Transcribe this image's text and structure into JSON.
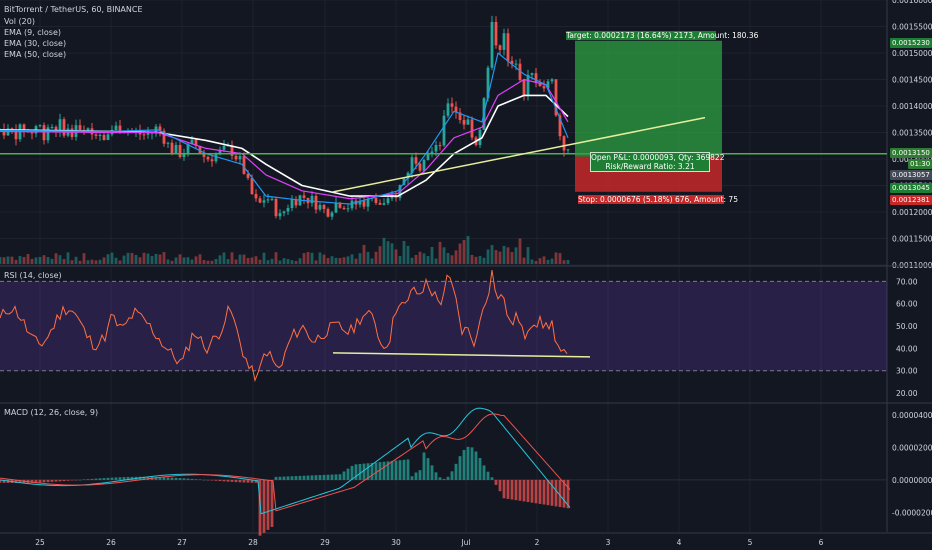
{
  "header": {
    "symbol_line": "BitTorrent / TetherUS, 60, BINANCE",
    "indicators": [
      "Vol (20)",
      "EMA (9, close)",
      "EMA (30, close)",
      "EMA (50, close)"
    ]
  },
  "rsi_label": "RSI (14, close)",
  "macd_label": "MACD (12, 26, close, 9)",
  "position": {
    "target_text": "Target: 0.0002173 (16.64%) 2173, Amount: 180.36",
    "open_text_line1": "Open P&L: 0.0000093, Qty: 369822",
    "open_text_line2": "Risk/Reward Ratio: 3.21",
    "stop_text": "Stop: 0.0000676 (5.18%) 676, Amount: 75"
  },
  "price_badges": {
    "target": "0.0015230",
    "current": "0.0013150",
    "timer": "01:30",
    "ema": "0.0013057",
    "entry": "0.0013045",
    "stop": "0.0012381"
  },
  "colors": {
    "bg": "#131722",
    "up": "#26a69a",
    "down": "#ef5350",
    "target_zone": "#1e7e34",
    "stop_zone": "#b71c1c",
    "ema9": "#2196f3",
    "ema30": "#e040fb",
    "ema50": "#ffffff",
    "trendline": "#e6ee9c",
    "horizontal": "#4caf50",
    "rsi_line": "#ff7043",
    "macd_line": "#26c6da",
    "signal_line": "#ef5350"
  },
  "chart_data": [
    {
      "type": "candlestick",
      "title": "BitTorrent / TetherUS, 60, BINANCE",
      "x_ticks": [
        "25",
        "26",
        "27",
        "28",
        "29",
        "30",
        "Jul",
        "2",
        "3",
        "4",
        "5",
        "6"
      ],
      "y_ticks": [
        "0.0016000",
        "0.0015500",
        "0.0015000",
        "0.0014500",
        "0.0014000",
        "0.0013500",
        "0.0013000",
        "0.0012500",
        "0.0012000",
        "0.0011500",
        "0.0011000"
      ],
      "ylim": [
        0.0011,
        0.0016
      ],
      "close_path": [
        [
          0,
          0.001355
        ],
        [
          12,
          0.00136
        ],
        [
          24,
          0.00135
        ],
        [
          36,
          0.001345
        ],
        [
          48,
          0.00136
        ],
        [
          60,
          0.00132
        ],
        [
          72,
          0.00131
        ],
        [
          84,
          0.00133
        ],
        [
          96,
          0.0013
        ],
        [
          108,
          0.00131
        ],
        [
          120,
          0.00132
        ],
        [
          132,
          0.00129
        ],
        [
          140,
          0.00124
        ],
        [
          148,
          0.00121
        ],
        [
          156,
          0.00123
        ],
        [
          164,
          0.00121
        ],
        [
          170,
          0.00119
        ],
        [
          180,
          0.00122
        ],
        [
          192,
          0.00123
        ],
        [
          204,
          0.00122
        ],
        [
          216,
          0.0012
        ],
        [
          228,
          0.00122
        ],
        [
          240,
          0.00121
        ],
        [
          252,
          0.00122
        ],
        [
          264,
          0.00122
        ],
        [
          276,
          0.00121
        ],
        [
          288,
          0.00124
        ],
        [
          296,
          0.00127
        ],
        [
          304,
          0.00131
        ],
        [
          310,
          0.00129
        ],
        [
          316,
          0.00132
        ],
        [
          324,
          0.00131
        ],
        [
          330,
          0.00133
        ],
        [
          338,
          0.00141
        ],
        [
          344,
          0.0014
        ],
        [
          352,
          0.00137
        ],
        [
          358,
          0.00137
        ],
        [
          366,
          0.00133
        ],
        [
          372,
          0.00138
        ],
        [
          378,
          0.00147
        ],
        [
          382,
          0.00155
        ],
        [
          388,
          0.00151
        ],
        [
          394,
          0.00153
        ],
        [
          400,
          0.00146
        ],
        [
          406,
          0.00149
        ],
        [
          414,
          0.00143
        ],
        [
          420,
          0.00146
        ],
        [
          428,
          0.00145
        ],
        [
          436,
          0.00143
        ],
        [
          442,
          0.00146
        ],
        [
          446,
          0.00138
        ],
        [
          452,
          0.00133
        ],
        [
          458,
          0.00131
        ]
      ],
      "ema9_path": [
        [
          0,
          0.001352
        ],
        [
          48,
          0.001355
        ],
        [
          96,
          0.00131
        ],
        [
          132,
          0.00129
        ],
        [
          156,
          0.00123
        ],
        [
          192,
          0.001222
        ],
        [
          240,
          0.001215
        ],
        [
          288,
          0.00124
        ],
        [
          316,
          0.00131
        ],
        [
          344,
          0.00139
        ],
        [
          372,
          0.00137
        ],
        [
          388,
          0.0015
        ],
        [
          414,
          0.00146
        ],
        [
          436,
          0.00144
        ],
        [
          458,
          0.00134
        ]
      ],
      "ema30_path": [
        [
          0,
          0.00135
        ],
        [
          48,
          0.00135
        ],
        [
          96,
          0.00132
        ],
        [
          132,
          0.00131
        ],
        [
          156,
          0.00127
        ],
        [
          192,
          0.00124
        ],
        [
          240,
          0.001225
        ],
        [
          288,
          0.001235
        ],
        [
          316,
          0.00128
        ],
        [
          344,
          0.00134
        ],
        [
          372,
          0.00136
        ],
        [
          388,
          0.00142
        ],
        [
          414,
          0.00145
        ],
        [
          436,
          0.00144
        ],
        [
          458,
          0.00137
        ]
      ],
      "ema50_path": [
        [
          0,
          0.001352
        ],
        [
          48,
          0.00135
        ],
        [
          96,
          0.001335
        ],
        [
          132,
          0.00132
        ],
        [
          156,
          0.00129
        ],
        [
          192,
          0.00125
        ],
        [
          240,
          0.00123
        ],
        [
          288,
          0.00123
        ],
        [
          316,
          0.00126
        ],
        [
          344,
          0.00131
        ],
        [
          372,
          0.00134
        ],
        [
          388,
          0.0014
        ],
        [
          414,
          0.00142
        ],
        [
          436,
          0.00142
        ],
        [
          458,
          0.00138
        ]
      ],
      "horizontal_line": 0.00131,
      "trendline": [
        [
          265,
          0.001238
        ],
        [
          565,
          0.001378
        ]
      ],
      "position": {
        "target": 0.001523,
        "entry": 0.0013045,
        "stop": 0.0012381
      }
    },
    {
      "type": "line",
      "title": "RSI (14, close)",
      "y_ticks": [
        "70.00",
        "60.00",
        "50.00",
        "40.00",
        "30.00",
        "20.00"
      ],
      "ylim": [
        16,
        76
      ],
      "bands": [
        30,
        70
      ],
      "path": [
        [
          0,
          55
        ],
        [
          12,
          48
        ],
        [
          24,
          56
        ],
        [
          36,
          52
        ],
        [
          48,
          45
        ],
        [
          60,
          38
        ],
        [
          72,
          33
        ],
        [
          84,
          48
        ],
        [
          96,
          40
        ],
        [
          108,
          46
        ],
        [
          120,
          58
        ],
        [
          132,
          40
        ],
        [
          140,
          30
        ],
        [
          148,
          27
        ],
        [
          156,
          40
        ],
        [
          164,
          33
        ],
        [
          170,
          30
        ],
        [
          180,
          44
        ],
        [
          192,
          50
        ],
        [
          204,
          43
        ],
        [
          216,
          48
        ],
        [
          228,
          50
        ],
        [
          240,
          47
        ],
        [
          252,
          55
        ],
        [
          264,
          54
        ],
        [
          272,
          40
        ],
        [
          280,
          45
        ],
        [
          288,
          62
        ],
        [
          296,
          58
        ],
        [
          304,
          68
        ],
        [
          310,
          62
        ],
        [
          316,
          70
        ],
        [
          324,
          64
        ],
        [
          330,
          60
        ],
        [
          338,
          72
        ],
        [
          344,
          65
        ],
        [
          352,
          48
        ],
        [
          358,
          48
        ],
        [
          366,
          42
        ],
        [
          372,
          58
        ],
        [
          378,
          65
        ],
        [
          382,
          74
        ],
        [
          388,
          62
        ],
        [
          394,
          63
        ],
        [
          400,
          50
        ],
        [
          406,
          55
        ],
        [
          414,
          45
        ],
        [
          420,
          52
        ],
        [
          428,
          52
        ],
        [
          436,
          50
        ],
        [
          442,
          52
        ],
        [
          446,
          40
        ],
        [
          452,
          37
        ],
        [
          458,
          36
        ]
      ],
      "trendline": [
        [
          265,
          38.0
        ],
        [
          470,
          36.2
        ]
      ]
    },
    {
      "type": "bar+line",
      "title": "MACD (12, 26, close, 9)",
      "y_ticks": [
        "0.0000400",
        "0.0000200",
        "0.0000000",
        "-0.0000200"
      ],
      "ylim": [
        -3.2e-05,
        4.6e-05
      ]
    }
  ]
}
